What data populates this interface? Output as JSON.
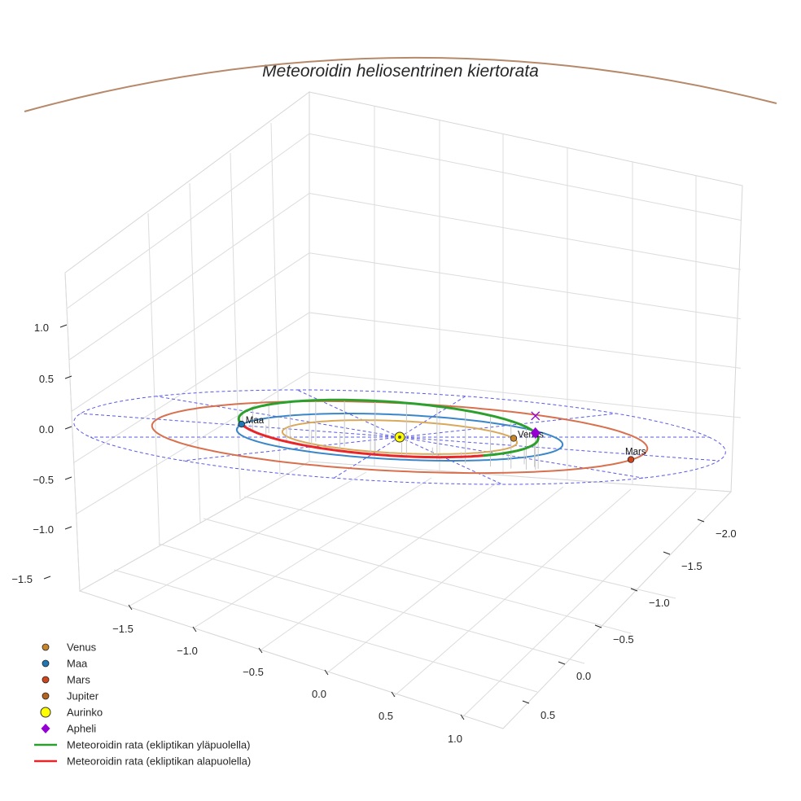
{
  "chart_data": {
    "type": "line",
    "projection": "3d",
    "title": "Meteoroidin heliosentrinen kiertorata",
    "xlabel": "",
    "ylabel": "",
    "zlabel": "",
    "x_ticks": [
      "−2.0",
      "−1.5",
      "−1.0",
      "−0.5",
      "0.0",
      "0.5"
    ],
    "y_ticks": [
      "−1.5",
      "−1.0",
      "−0.5",
      "0.0",
      "0.5",
      "1.0"
    ],
    "z_ticks": [
      "−1.5",
      "−1.0",
      "−0.5",
      "0.0",
      "0.5",
      "1.0"
    ],
    "grid": true,
    "legend_position": "bottom-left",
    "planets": [
      {
        "name": "Venus",
        "orbit_radius_au": 0.72,
        "position_au": [
          -0.05,
          0.72,
          0.0
        ],
        "color": "#c8862a",
        "orbit_color": "#d9a95a"
      },
      {
        "name": "Maa",
        "orbit_radius_au": 1.0,
        "position_au": [
          0.55,
          -0.84,
          0.0
        ],
        "color": "#1f77b4",
        "orbit_color": "#3a86c8"
      },
      {
        "name": "Mars",
        "orbit_radius_au": 1.52,
        "position_au": [
          -0.95,
          1.18,
          0.0
        ],
        "color": "#d0451b",
        "orbit_color": "#d8704e"
      },
      {
        "name": "Jupiter",
        "orbit_radius_au": 2.0,
        "position_au": null,
        "color": "#b5651d",
        "orbit_color": "#b5896a"
      }
    ],
    "sun": {
      "name": "Aurinko",
      "position_au": [
        0,
        0,
        0
      ],
      "color": "#ffff00"
    },
    "aphelion": {
      "name": "Apheli",
      "position_au": [
        -1.38,
        0.42,
        0.37
      ],
      "color": "#9400d3"
    },
    "meteoroid_orbit": {
      "perihelion_au": [
        0.55,
        -0.84,
        0.0
      ],
      "aphelion_au": [
        -1.38,
        0.42,
        0.37
      ],
      "ecliptic_crossings_au": [
        [
          0.55,
          -0.84,
          0.0
        ],
        [
          -0.68,
          0.18,
          0.0
        ]
      ],
      "series": [
        {
          "name": "Meteoroidin rata (ekliptikan yläpuolella)",
          "color": "#2ca02c"
        },
        {
          "name": "Meteoroidin rata (ekliptikan alapuolella)",
          "color": "#e8262a"
        }
      ]
    },
    "reference_circle_au": 2.0,
    "legend": [
      {
        "label": "Venus",
        "marker": "dot",
        "color": "#c8862a"
      },
      {
        "label": "Maa",
        "marker": "dot",
        "color": "#1f77b4"
      },
      {
        "label": "Mars",
        "marker": "dot",
        "color": "#d0451b"
      },
      {
        "label": "Jupiter",
        "marker": "dot",
        "color": "#b5651d"
      },
      {
        "label": "Aurinko",
        "marker": "dot-large",
        "color": "#ffff00"
      },
      {
        "label": "Apheli",
        "marker": "diamond",
        "color": "#9400d3"
      },
      {
        "label": "Meteoroidin rata (ekliptikan yläpuolella)",
        "marker": "line",
        "color": "#2ca02c"
      },
      {
        "label": "Meteoroidin rata (ekliptikan alapuolella)",
        "marker": "line",
        "color": "#e8262a"
      }
    ]
  }
}
